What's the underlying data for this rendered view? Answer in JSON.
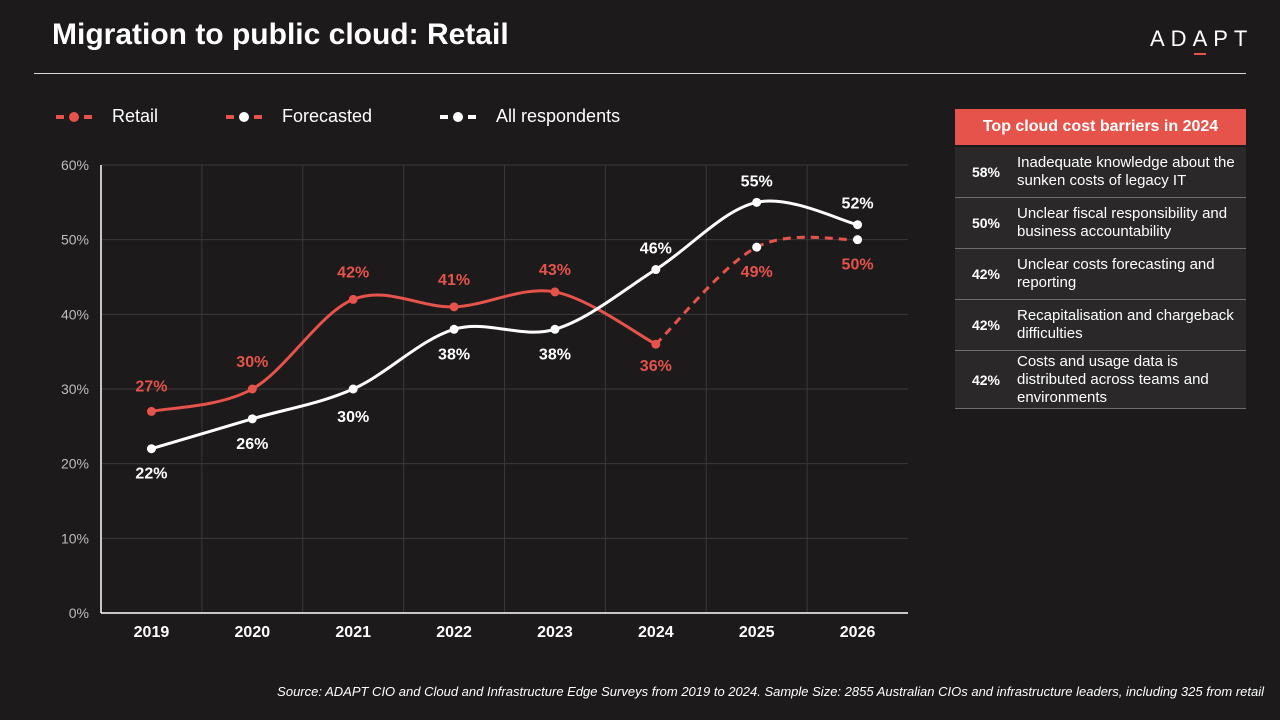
{
  "header": {
    "title": "Migration to public cloud: Retail",
    "logo_text_1": "AD",
    "logo_text_2": "A",
    "logo_text_3": "PT"
  },
  "colors": {
    "retail": "#e5534b",
    "all": "#ffffff",
    "background": "#1c1a1b",
    "grid": "#3a3839",
    "axis_text": "#bdbdbd"
  },
  "chart_data": {
    "type": "line",
    "title": "Migration to public cloud: Retail",
    "categories": [
      "2019",
      "2020",
      "2021",
      "2022",
      "2023",
      "2024",
      "2025",
      "2026"
    ],
    "ylim": [
      0,
      60
    ],
    "yticks": [
      "0%",
      "10%",
      "20%",
      "30%",
      "40%",
      "50%",
      "60%"
    ],
    "grid": true,
    "legend_position": "top-left",
    "series": [
      {
        "name": "Retail",
        "values": [
          27,
          30,
          42,
          41,
          43,
          36,
          null,
          null
        ],
        "labels": [
          "27%",
          "30%",
          "42%",
          "41%",
          "43%",
          "36%",
          "",
          ""
        ],
        "color": "#e5534b",
        "style": "solid"
      },
      {
        "name": "Forecasted",
        "values": [
          null,
          null,
          null,
          null,
          null,
          36,
          49,
          50
        ],
        "labels": [
          "",
          "",
          "",
          "",
          "",
          "",
          "49%",
          "50%"
        ],
        "color": "#e5534b",
        "style": "dashed"
      },
      {
        "name": "All respondents",
        "values": [
          22,
          26,
          30,
          38,
          38,
          46,
          55,
          52
        ],
        "labels": [
          "22%",
          "26%",
          "30%",
          "38%",
          "38%",
          "46%",
          "55%",
          "52%"
        ],
        "color": "#ffffff",
        "style": "solid"
      }
    ]
  },
  "legend": {
    "retail": "Retail",
    "forecasted": "Forecasted",
    "all": "All respondents"
  },
  "panel": {
    "title": "Top cloud cost barriers in 2024",
    "rows": [
      {
        "pct": "58%",
        "text": "Inadequate knowledge about the sunken costs of legacy IT"
      },
      {
        "pct": "50%",
        "text": "Unclear fiscal responsibility and business accountability"
      },
      {
        "pct": "42%",
        "text": "Unclear costs forecasting and reporting"
      },
      {
        "pct": "42%",
        "text": "Recapitalisation and chargeback difficulties"
      },
      {
        "pct": "42%",
        "text": "Costs and usage data is distributed across teams and environments"
      }
    ]
  },
  "source": "Source: ADAPT CIO and Cloud and Infrastructure Edge Surveys from 2019 to 2024. Sample Size: 2855 Australian CIOs and infrastructure leaders, including 325 from retail"
}
